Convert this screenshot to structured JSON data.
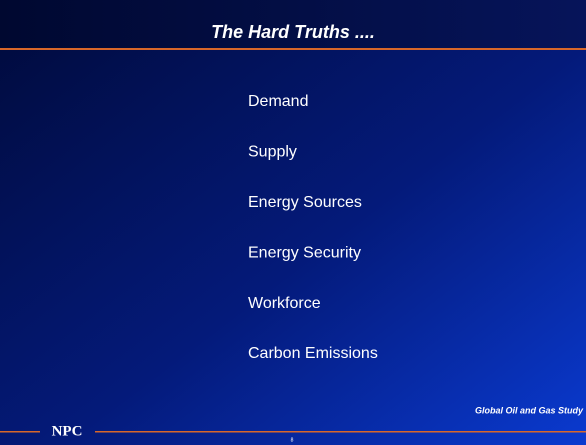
{
  "header": {
    "title": "The Hard Truths ...."
  },
  "items": [
    "Demand",
    "Supply",
    "Energy Sources",
    "Energy Security",
    "Workforce",
    "Carbon Emissions"
  ],
  "footer": {
    "logo": "NPC",
    "study": "Global Oil and Gas Study",
    "page": "8"
  }
}
